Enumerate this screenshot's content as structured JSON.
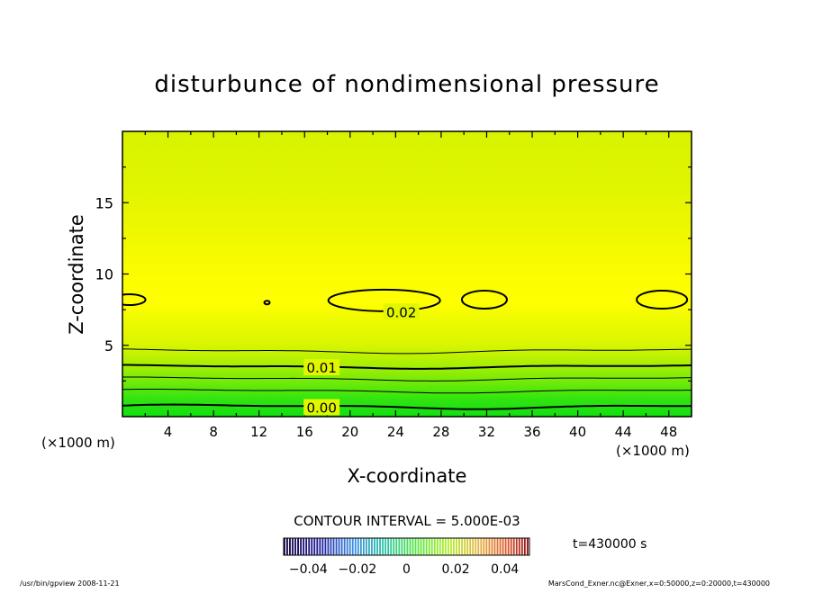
{
  "chart_data": {
    "type": "contour",
    "title": "disturbunce of nondimensional pressure",
    "xlabel": "X-coordinate",
    "ylabel": "Z-coordinate",
    "x_unit": "(×1000 m)",
    "y_unit": "(×1000 m)",
    "xlim": [
      0,
      50
    ],
    "ylim": [
      0,
      20
    ],
    "x_ticks": [
      4,
      8,
      12,
      16,
      20,
      24,
      28,
      32,
      36,
      40,
      44,
      48
    ],
    "y_ticks": [
      5,
      10,
      15
    ],
    "contour_interval_text": "CONTOUR INTERVAL = 5.000E-03",
    "contour_labels": [
      {
        "text": "0.00",
        "x": 17.5,
        "z": 0.6
      },
      {
        "text": "0.01",
        "x": 17.5,
        "z": 3.4
      },
      {
        "text": "0.02",
        "x": 24.5,
        "z": 7.3
      }
    ],
    "colorbar": {
      "ticks": [
        "−0.04",
        "−0.02",
        "0",
        "0.02",
        "0.04"
      ],
      "range": [
        -0.05,
        0.05
      ]
    },
    "time_text": "t=430000 s",
    "footer_left": "/usr/bin/gpview   2008-11-21",
    "footer_right": "MarsCond_Exner.nc@Exner,x=0:50000,z=0:20000,t=430000",
    "colors": {
      "low": "#10e010",
      "mid": "#c8f000",
      "high": "#ffff00"
    }
  }
}
